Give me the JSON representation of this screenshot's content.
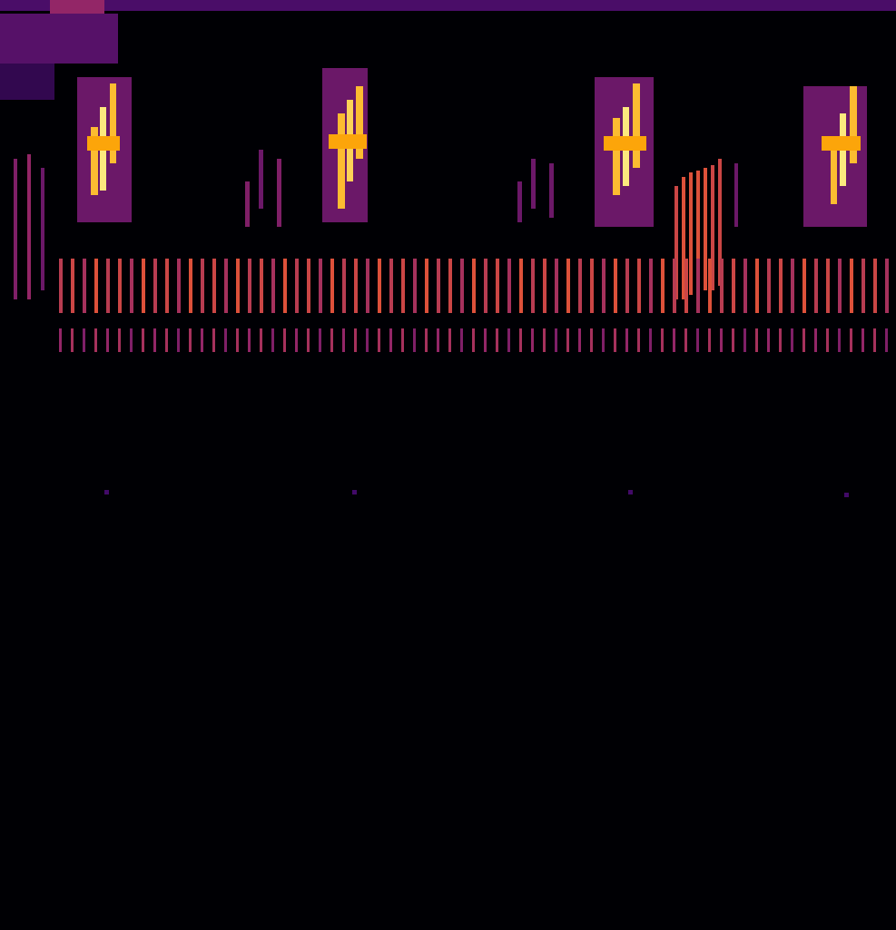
{
  "chart_data": {
    "type": "heatmap",
    "tick_labels": false,
    "grid": false,
    "xlim": [
      0,
      987
    ],
    "ylim": [
      0,
      1025
    ],
    "color_range": [
      0,
      1
    ],
    "cells": [
      [
        0,
        0,
        987,
        12,
        0.22
      ],
      [
        55,
        0,
        115,
        45,
        0.4
      ],
      [
        0,
        15,
        130,
        70,
        0.25
      ],
      [
        0,
        70,
        60,
        110,
        0.15
      ],
      [
        85,
        85,
        145,
        245,
        0.3
      ],
      [
        100,
        140,
        108,
        215,
        0.85
      ],
      [
        110,
        118,
        117,
        210,
        0.95
      ],
      [
        121,
        92,
        128,
        180,
        0.85
      ],
      [
        96,
        150,
        132,
        166,
        0.8
      ],
      [
        355,
        75,
        405,
        245,
        0.3
      ],
      [
        372,
        125,
        380,
        230,
        0.85
      ],
      [
        382,
        110,
        389,
        200,
        0.9
      ],
      [
        392,
        95,
        400,
        175,
        0.85
      ],
      [
        362,
        148,
        404,
        164,
        0.8
      ],
      [
        655,
        85,
        720,
        250,
        0.3
      ],
      [
        675,
        130,
        683,
        215,
        0.85
      ],
      [
        686,
        118,
        693,
        205,
        0.95
      ],
      [
        697,
        92,
        705,
        185,
        0.85
      ],
      [
        665,
        150,
        712,
        166,
        0.8
      ],
      [
        885,
        95,
        955,
        250,
        0.3
      ],
      [
        915,
        150,
        922,
        225,
        0.85
      ],
      [
        925,
        125,
        932,
        205,
        0.95
      ],
      [
        936,
        95,
        944,
        180,
        0.85
      ],
      [
        905,
        150,
        948,
        166,
        0.8
      ],
      [
        15,
        175,
        19,
        330,
        0.35
      ],
      [
        30,
        170,
        34,
        330,
        0.4
      ],
      [
        45,
        185,
        49,
        320,
        0.3
      ],
      [
        270,
        200,
        275,
        250,
        0.35
      ],
      [
        285,
        165,
        290,
        230,
        0.3
      ],
      [
        305,
        175,
        310,
        250,
        0.35
      ],
      [
        570,
        200,
        575,
        245,
        0.3
      ],
      [
        585,
        175,
        590,
        230,
        0.3
      ],
      [
        605,
        180,
        610,
        240,
        0.3
      ],
      [
        743,
        205,
        747,
        330,
        0.55
      ],
      [
        751,
        195,
        755,
        330,
        0.6
      ],
      [
        759,
        190,
        763,
        325,
        0.6
      ],
      [
        767,
        188,
        771,
        320,
        0.6
      ],
      [
        775,
        185,
        779,
        320,
        0.6
      ],
      [
        783,
        182,
        787,
        320,
        0.55
      ],
      [
        791,
        175,
        795,
        315,
        0.55
      ],
      [
        809,
        180,
        813,
        250,
        0.3
      ],
      [
        115,
        540,
        120,
        545,
        0.2
      ],
      [
        388,
        540,
        393,
        545,
        0.2
      ],
      [
        692,
        540,
        697,
        545,
        0.2
      ],
      [
        930,
        543,
        935,
        548,
        0.2
      ],
      [
        65,
        285,
        69,
        345,
        0.5
      ],
      [
        78,
        285,
        82,
        345,
        0.55
      ],
      [
        91,
        285,
        95,
        345,
        0.45
      ],
      [
        104,
        285,
        108,
        345,
        0.6
      ],
      [
        117,
        285,
        121,
        345,
        0.5
      ],
      [
        130,
        285,
        134,
        345,
        0.55
      ],
      [
        143,
        285,
        147,
        345,
        0.45
      ],
      [
        156,
        285,
        160,
        345,
        0.6
      ],
      [
        169,
        285,
        173,
        345,
        0.5
      ],
      [
        182,
        285,
        186,
        345,
        0.55
      ],
      [
        195,
        285,
        199,
        345,
        0.45
      ],
      [
        208,
        285,
        212,
        345,
        0.6
      ],
      [
        221,
        285,
        225,
        345,
        0.5
      ],
      [
        234,
        285,
        238,
        345,
        0.55
      ],
      [
        247,
        285,
        251,
        345,
        0.45
      ],
      [
        260,
        285,
        264,
        345,
        0.6
      ],
      [
        273,
        285,
        277,
        345,
        0.5
      ],
      [
        286,
        285,
        290,
        345,
        0.55
      ],
      [
        299,
        285,
        303,
        345,
        0.45
      ],
      [
        312,
        285,
        316,
        345,
        0.6
      ],
      [
        325,
        285,
        329,
        345,
        0.5
      ],
      [
        338,
        285,
        342,
        345,
        0.55
      ],
      [
        351,
        285,
        355,
        345,
        0.45
      ],
      [
        364,
        285,
        368,
        345,
        0.6
      ],
      [
        377,
        285,
        381,
        345,
        0.5
      ],
      [
        390,
        285,
        394,
        345,
        0.55
      ],
      [
        403,
        285,
        407,
        345,
        0.45
      ],
      [
        416,
        285,
        420,
        345,
        0.6
      ],
      [
        429,
        285,
        433,
        345,
        0.5
      ],
      [
        442,
        285,
        446,
        345,
        0.55
      ],
      [
        455,
        285,
        459,
        345,
        0.45
      ],
      [
        468,
        285,
        472,
        345,
        0.6
      ],
      [
        481,
        285,
        485,
        345,
        0.5
      ],
      [
        494,
        285,
        498,
        345,
        0.55
      ],
      [
        507,
        285,
        511,
        345,
        0.45
      ],
      [
        520,
        285,
        524,
        345,
        0.6
      ],
      [
        533,
        285,
        537,
        345,
        0.5
      ],
      [
        546,
        285,
        550,
        345,
        0.55
      ],
      [
        559,
        285,
        563,
        345,
        0.45
      ],
      [
        572,
        285,
        576,
        345,
        0.6
      ],
      [
        585,
        285,
        589,
        345,
        0.5
      ],
      [
        598,
        285,
        602,
        345,
        0.55
      ],
      [
        611,
        285,
        615,
        345,
        0.45
      ],
      [
        624,
        285,
        628,
        345,
        0.6
      ],
      [
        637,
        285,
        641,
        345,
        0.5
      ],
      [
        650,
        285,
        654,
        345,
        0.55
      ],
      [
        663,
        285,
        667,
        345,
        0.45
      ],
      [
        676,
        285,
        680,
        345,
        0.6
      ],
      [
        689,
        285,
        693,
        345,
        0.5
      ],
      [
        702,
        285,
        706,
        345,
        0.55
      ],
      [
        715,
        285,
        719,
        345,
        0.45
      ],
      [
        728,
        285,
        732,
        345,
        0.6
      ],
      [
        741,
        285,
        745,
        345,
        0.5
      ],
      [
        754,
        285,
        758,
        345,
        0.55
      ],
      [
        767,
        285,
        771,
        345,
        0.45
      ],
      [
        780,
        285,
        784,
        345,
        0.6
      ],
      [
        793,
        285,
        797,
        345,
        0.5
      ],
      [
        806,
        285,
        810,
        345,
        0.55
      ],
      [
        819,
        285,
        823,
        345,
        0.45
      ],
      [
        832,
        285,
        836,
        345,
        0.6
      ],
      [
        845,
        285,
        849,
        345,
        0.5
      ],
      [
        858,
        285,
        862,
        345,
        0.55
      ],
      [
        871,
        285,
        875,
        345,
        0.45
      ],
      [
        884,
        285,
        888,
        345,
        0.6
      ],
      [
        897,
        285,
        901,
        345,
        0.5
      ],
      [
        910,
        285,
        914,
        345,
        0.55
      ],
      [
        923,
        285,
        927,
        345,
        0.45
      ],
      [
        936,
        285,
        940,
        345,
        0.6
      ],
      [
        949,
        285,
        953,
        345,
        0.5
      ],
      [
        962,
        285,
        966,
        345,
        0.55
      ],
      [
        975,
        285,
        979,
        345,
        0.45
      ],
      [
        65,
        362,
        68,
        388,
        0.4
      ],
      [
        78,
        362,
        81,
        388,
        0.45
      ],
      [
        91,
        362,
        94,
        388,
        0.35
      ],
      [
        104,
        362,
        107,
        388,
        0.45
      ],
      [
        117,
        362,
        120,
        388,
        0.4
      ],
      [
        130,
        362,
        133,
        388,
        0.45
      ],
      [
        143,
        362,
        146,
        388,
        0.35
      ],
      [
        156,
        362,
        159,
        388,
        0.45
      ],
      [
        169,
        362,
        172,
        388,
        0.4
      ],
      [
        182,
        362,
        185,
        388,
        0.45
      ],
      [
        195,
        362,
        198,
        388,
        0.35
      ],
      [
        208,
        362,
        211,
        388,
        0.45
      ],
      [
        221,
        362,
        224,
        388,
        0.4
      ],
      [
        234,
        362,
        237,
        388,
        0.45
      ],
      [
        247,
        362,
        250,
        388,
        0.35
      ],
      [
        260,
        362,
        263,
        388,
        0.45
      ],
      [
        273,
        362,
        276,
        388,
        0.4
      ],
      [
        286,
        362,
        289,
        388,
        0.45
      ],
      [
        299,
        362,
        302,
        388,
        0.35
      ],
      [
        312,
        362,
        315,
        388,
        0.45
      ],
      [
        325,
        362,
        328,
        388,
        0.4
      ],
      [
        338,
        362,
        341,
        388,
        0.45
      ],
      [
        351,
        362,
        354,
        388,
        0.35
      ],
      [
        364,
        362,
        367,
        388,
        0.45
      ],
      [
        377,
        362,
        380,
        388,
        0.4
      ],
      [
        390,
        362,
        393,
        388,
        0.45
      ],
      [
        403,
        362,
        406,
        388,
        0.35
      ],
      [
        416,
        362,
        419,
        388,
        0.45
      ],
      [
        429,
        362,
        432,
        388,
        0.4
      ],
      [
        442,
        362,
        445,
        388,
        0.45
      ],
      [
        455,
        362,
        458,
        388,
        0.35
      ],
      [
        468,
        362,
        471,
        388,
        0.45
      ],
      [
        481,
        362,
        484,
        388,
        0.4
      ],
      [
        494,
        362,
        497,
        388,
        0.45
      ],
      [
        507,
        362,
        510,
        388,
        0.35
      ],
      [
        520,
        362,
        523,
        388,
        0.45
      ],
      [
        533,
        362,
        536,
        388,
        0.4
      ],
      [
        546,
        362,
        549,
        388,
        0.45
      ],
      [
        559,
        362,
        562,
        388,
        0.35
      ],
      [
        572,
        362,
        575,
        388,
        0.45
      ],
      [
        585,
        362,
        588,
        388,
        0.4
      ],
      [
        598,
        362,
        601,
        388,
        0.45
      ],
      [
        611,
        362,
        614,
        388,
        0.35
      ],
      [
        624,
        362,
        627,
        388,
        0.45
      ],
      [
        637,
        362,
        640,
        388,
        0.4
      ],
      [
        650,
        362,
        653,
        388,
        0.45
      ],
      [
        663,
        362,
        666,
        388,
        0.35
      ],
      [
        676,
        362,
        679,
        388,
        0.45
      ],
      [
        689,
        362,
        692,
        388,
        0.4
      ],
      [
        702,
        362,
        705,
        388,
        0.45
      ],
      [
        715,
        362,
        718,
        388,
        0.35
      ],
      [
        728,
        362,
        731,
        388,
        0.45
      ],
      [
        741,
        362,
        744,
        388,
        0.4
      ],
      [
        754,
        362,
        757,
        388,
        0.45
      ],
      [
        767,
        362,
        770,
        388,
        0.35
      ],
      [
        780,
        362,
        783,
        388,
        0.45
      ],
      [
        793,
        362,
        796,
        388,
        0.4
      ],
      [
        806,
        362,
        809,
        388,
        0.45
      ],
      [
        819,
        362,
        822,
        388,
        0.35
      ],
      [
        832,
        362,
        835,
        388,
        0.45
      ],
      [
        845,
        362,
        848,
        388,
        0.4
      ],
      [
        858,
        362,
        861,
        388,
        0.45
      ],
      [
        871,
        362,
        874,
        388,
        0.35
      ],
      [
        884,
        362,
        887,
        388,
        0.45
      ],
      [
        897,
        362,
        900,
        388,
        0.4
      ],
      [
        910,
        362,
        913,
        388,
        0.45
      ],
      [
        923,
        362,
        926,
        388,
        0.35
      ],
      [
        936,
        362,
        939,
        388,
        0.45
      ],
      [
        949,
        362,
        952,
        388,
        0.4
      ],
      [
        962,
        362,
        965,
        388,
        0.45
      ],
      [
        975,
        362,
        978,
        388,
        0.35
      ]
    ]
  }
}
